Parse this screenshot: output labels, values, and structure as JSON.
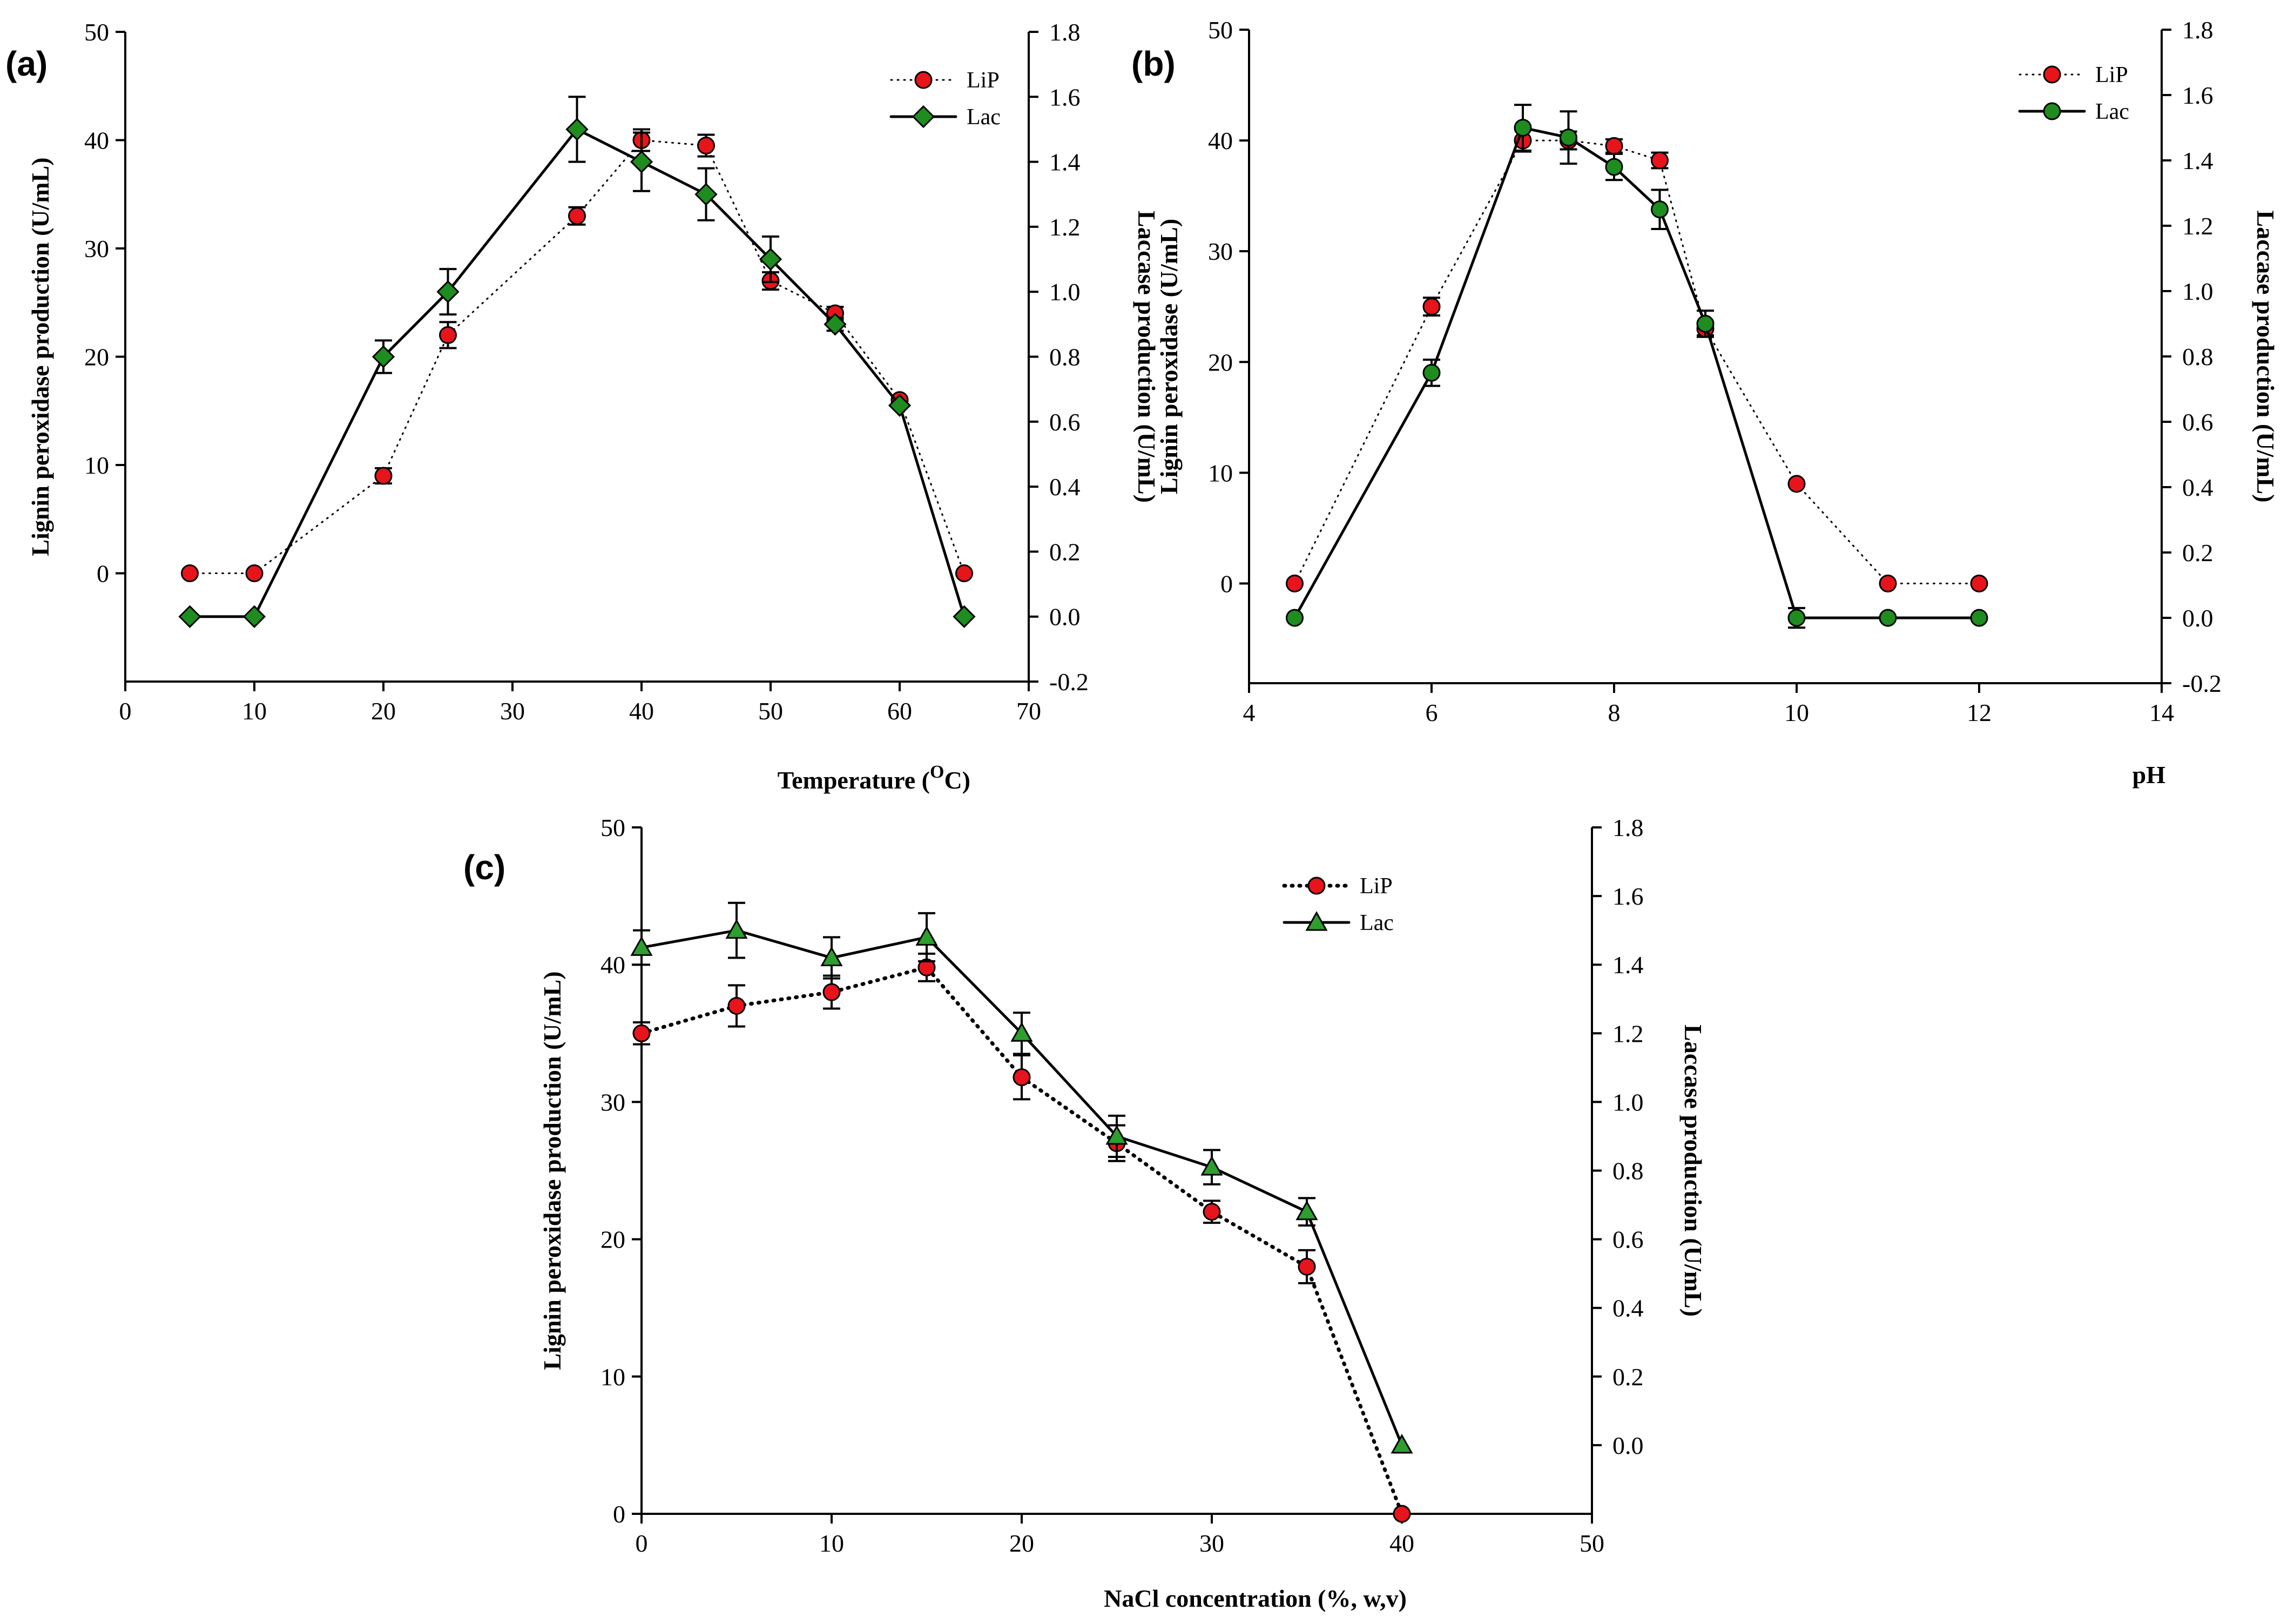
{
  "figure": {
    "colors": {
      "lip": "#e8141b",
      "lac_ab": "#1e8c1e",
      "lac_c": "#2e9e2e",
      "axis": "#000000"
    }
  },
  "chart_data": [
    {
      "panel": "(a)",
      "type": "line",
      "xlabel": "Temperature (",
      "xlabel_sup": "O",
      "xlabel_suffix": "C)",
      "ylabel": "Lignin peroxidase production (U/mL)",
      "y2label": "Laccase production (U/mL)",
      "xlim": [
        0,
        70
      ],
      "ylim": [
        -10,
        50
      ],
      "y2lim": [
        -0.2,
        1.8
      ],
      "xticks": [
        "0",
        "10",
        "20",
        "30",
        "40",
        "50",
        "60",
        "70"
      ],
      "yticks": [
        "0",
        "10",
        "20",
        "30",
        "40",
        "50"
      ],
      "y2ticks": [
        "-0.2",
        "0.0",
        "0.2",
        "0.4",
        "0.6",
        "0.8",
        "1.0",
        "1.2",
        "1.4",
        "1.6",
        "1.8"
      ],
      "legend": [
        "LiP",
        "Lac"
      ],
      "series": [
        {
          "name": "LiP",
          "axis": "left",
          "marker": "circle",
          "line": "dotted",
          "x": [
            5,
            10,
            20,
            25,
            35,
            40,
            45,
            50,
            55,
            60,
            65
          ],
          "y": [
            0,
            0,
            9,
            22,
            33,
            40,
            39.5,
            27,
            24,
            16,
            0
          ],
          "err": [
            0,
            0,
            0.7,
            1.2,
            0.8,
            1.0,
            1.0,
            0.8,
            0.6,
            0,
            0
          ]
        },
        {
          "name": "Lac",
          "axis": "right",
          "marker": "diamond",
          "line": "solid",
          "x": [
            5,
            10,
            20,
            25,
            35,
            40,
            45,
            50,
            55,
            60,
            65
          ],
          "y": [
            0,
            0,
            0.8,
            1.0,
            1.5,
            1.4,
            1.3,
            1.1,
            0.9,
            0.65,
            0
          ],
          "err": [
            0,
            0,
            0.05,
            0.07,
            0.1,
            0.09,
            0.08,
            0.07,
            0.02,
            0,
            0
          ]
        }
      ]
    },
    {
      "panel": "(b)",
      "type": "line",
      "xlabel": "pH",
      "ylabel": "Lignin peroxidase (U/mL)",
      "y2label": "Laccase production (U/mL)",
      "xlim": [
        4,
        14
      ],
      "ylim": [
        -9,
        50
      ],
      "y2lim": [
        -0.2,
        1.8
      ],
      "xticks": [
        "4",
        "6",
        "8",
        "10",
        "12",
        "14"
      ],
      "yticks": [
        "0",
        "10",
        "20",
        "30",
        "40",
        "50"
      ],
      "y2ticks": [
        "-0.2",
        "0.0",
        "0.2",
        "0.4",
        "0.6",
        "0.8",
        "1.0",
        "1.2",
        "1.4",
        "1.6",
        "1.8"
      ],
      "legend": [
        "LiP",
        "Lac"
      ],
      "series": [
        {
          "name": "LiP",
          "axis": "left",
          "marker": "circle",
          "line": "dotted",
          "x": [
            4.5,
            6,
            7,
            7.5,
            8,
            8.5,
            9,
            10,
            11,
            12
          ],
          "y": [
            0,
            25,
            40,
            40,
            39.5,
            38.2,
            23,
            9,
            0,
            0
          ],
          "err": [
            0,
            0.8,
            1.0,
            0.8,
            0.6,
            0.7,
            0.6,
            0,
            0,
            0
          ]
        },
        {
          "name": "Lac",
          "axis": "right",
          "marker": "circle",
          "line": "solid",
          "x": [
            4.5,
            6,
            7,
            7.5,
            8,
            8.5,
            9,
            10,
            11,
            12
          ],
          "y": [
            0,
            0.75,
            1.5,
            1.47,
            1.38,
            1.25,
            0.9,
            0,
            0,
            0
          ],
          "err": [
            0,
            0.04,
            0.07,
            0.08,
            0.04,
            0.06,
            0.04,
            0.03,
            0,
            0
          ]
        }
      ]
    },
    {
      "panel": "(c)",
      "type": "line",
      "xlabel": "NaCl concentration (%, w,v)",
      "ylabel": "Lignin peroxidase production (U/mL)",
      "y2label": "Laccase production (U/mL)",
      "xlim": [
        0,
        50
      ],
      "ylim": [
        0,
        50
      ],
      "y2lim": [
        -0.2,
        1.8
      ],
      "xticks": [
        "0",
        "10",
        "20",
        "30",
        "40",
        "50"
      ],
      "yticks": [
        "0",
        "10",
        "20",
        "30",
        "40",
        "50"
      ],
      "y2ticks": [
        "0.0",
        "0.2",
        "0.4",
        "0.6",
        "0.8",
        "1.0",
        "1.2",
        "1.4",
        "1.6",
        "1.8"
      ],
      "legend": [
        "LiP",
        "Lac"
      ],
      "series": [
        {
          "name": "LiP",
          "axis": "left",
          "marker": "circle",
          "line": "dotted",
          "x": [
            0,
            5,
            10,
            15,
            20,
            25,
            30,
            35,
            40
          ],
          "y": [
            35,
            37,
            38,
            39.8,
            31.8,
            27,
            22,
            18,
            0
          ],
          "err": [
            0.8,
            1.5,
            1.2,
            1.0,
            1.6,
            1.3,
            0.8,
            1.2,
            0
          ]
        },
        {
          "name": "Lac",
          "axis": "right",
          "marker": "triangle",
          "line": "solid",
          "x": [
            0,
            5,
            10,
            15,
            20,
            25,
            30,
            35,
            40
          ],
          "y": [
            1.45,
            1.5,
            1.42,
            1.48,
            1.2,
            0.9,
            0.81,
            0.68,
            0
          ],
          "err": [
            0.05,
            0.08,
            0.06,
            0.07,
            0.06,
            0.06,
            0.05,
            0.04,
            0
          ]
        }
      ]
    }
  ]
}
